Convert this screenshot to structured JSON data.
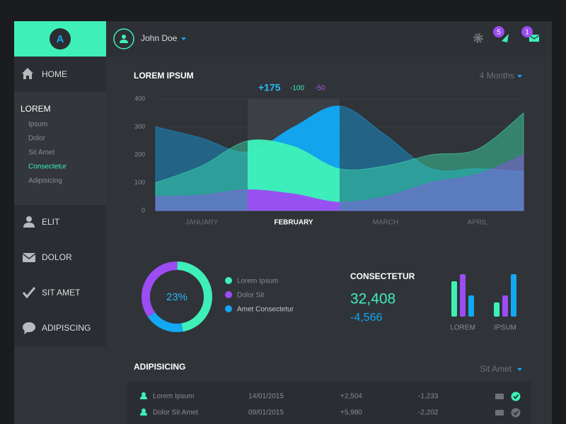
{
  "header": {
    "logo": "A",
    "user": "John Doe",
    "badges": [
      5,
      1
    ]
  },
  "sidebar": {
    "top": [
      "HOME"
    ],
    "section": {
      "title": "LOREM",
      "items": [
        "Ipsum",
        "Dolor",
        "Sit Amet",
        "Consectetur",
        "Adipisicing"
      ],
      "active": 3
    },
    "bottom": [
      "ELIT",
      "DOLOR",
      "SIT AMET",
      "ADIPISCING"
    ]
  },
  "main_chart_header": {
    "title": "LOREM IPSUM",
    "filter": "4 Months",
    "deltas": [
      {
        "text": "+175",
        "color": "#2ab8f5"
      },
      {
        "text": "-100",
        "color": "#3ef0b8"
      },
      {
        "text": "-50",
        "color": "#a45cf5"
      }
    ]
  },
  "chart_data": [
    {
      "type": "area",
      "x": [
        0,
        0.5,
        1,
        1.5,
        2,
        2.5,
        3,
        3.5,
        4
      ],
      "xlim": [
        0,
        4
      ],
      "xticks": [
        {
          "value": 0.5,
          "label": "JANUARY"
        },
        {
          "value": 1.5,
          "label": "FEBRUARY"
        },
        {
          "value": 2.5,
          "label": "MARCH"
        },
        {
          "value": 3.5,
          "label": "APRIL"
        }
      ],
      "highlight": [
        1,
        2
      ],
      "ylim": [
        0,
        400
      ],
      "yticks": [
        0,
        100,
        200,
        300,
        400
      ],
      "grid": true,
      "series": [
        {
          "color": "#12a8f2",
          "values": [
            300,
            260,
            210,
            300,
            375,
            270,
            150,
            150,
            140
          ]
        },
        {
          "color": "#3ef0b8",
          "values": [
            100,
            160,
            250,
            230,
            150,
            160,
            200,
            220,
            350
          ]
        },
        {
          "color": "#9b4cf2",
          "values": [
            50,
            55,
            75,
            60,
            30,
            50,
            100,
            130,
            200
          ]
        }
      ]
    },
    {
      "type": "pie",
      "donut": true,
      "center_label": "23%",
      "start_angle": 170,
      "direction": "counterclockwise",
      "categories": [
        "Lorem Ipsum",
        "Dolor Sit",
        "Amet Consectetur"
      ],
      "values": [
        47,
        35,
        18
      ],
      "colors": [
        "#3ef0b8",
        "#9b4cf2",
        "#12a8f2"
      ]
    },
    {
      "type": "bar",
      "categories": [
        "LOREM",
        "IPSUM"
      ],
      "ylim": [
        0,
        60
      ],
      "series": [
        {
          "color": "#3ef0b8",
          "values": [
            50,
            20
          ]
        },
        {
          "color": "#9b4cf2",
          "values": [
            60,
            30
          ]
        },
        {
          "color": "#12a8f2",
          "values": [
            30,
            60
          ]
        }
      ]
    }
  ],
  "stats": {
    "title": "CONSECTETUR",
    "value": "32,408",
    "change": "-4,566"
  },
  "table": {
    "title": "ADIPISICING",
    "filter": "Sit Amet",
    "rows": [
      {
        "name": "Lorem Ipsum",
        "date": "14/01/2015",
        "plus": "+2,504",
        "minus": "-1,233",
        "done": true
      },
      {
        "name": "Dolor Sit Amet",
        "date": "09/01/2015",
        "plus": "+5,980",
        "minus": "-2,202",
        "done": false
      }
    ]
  }
}
